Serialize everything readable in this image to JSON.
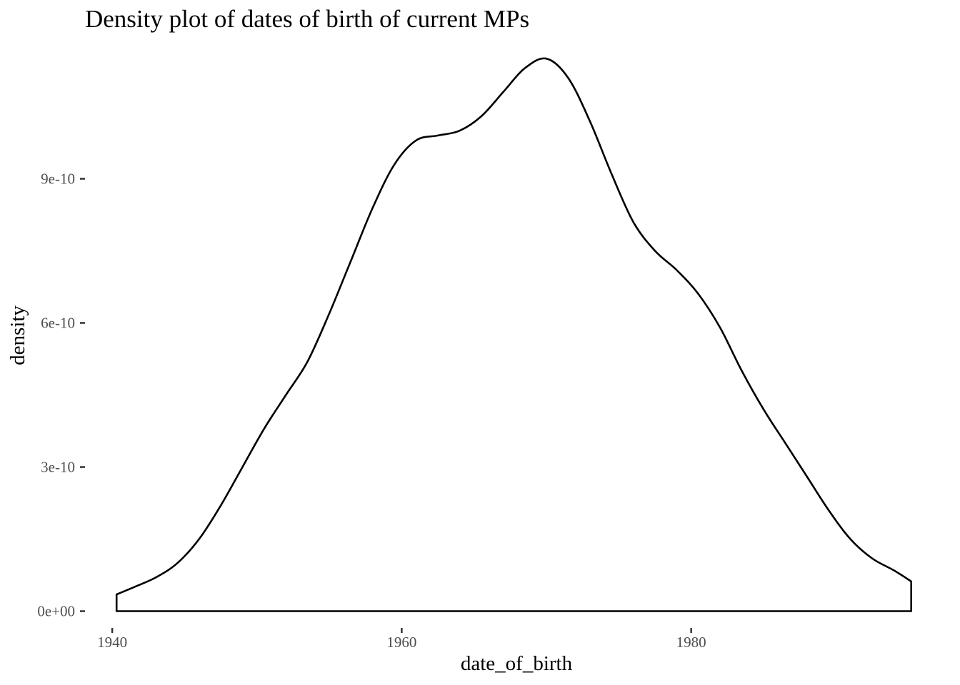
{
  "chart_data": {
    "type": "area",
    "title": "Density plot of dates of birth of current MPs",
    "xlabel": "date_of_birth",
    "ylabel": "density",
    "xlim": [
      1939.5,
      1996.5
    ],
    "ylim": [
      -2e-11,
      1.18e-09
    ],
    "x_ticks": [
      1940,
      1960,
      1980
    ],
    "x_tick_labels": [
      "1940",
      "1960",
      "1980"
    ],
    "y_ticks": [
      0,
      3e-10,
      6e-10,
      9e-10
    ],
    "y_tick_labels": [
      "0e+00",
      "3e-10",
      "6e-10",
      "9e-10"
    ],
    "grid": false,
    "fill": "none",
    "line_color": "#000000",
    "series": [
      {
        "x": [
          1940.3,
          1941.5,
          1943.0,
          1944.5,
          1946.0,
          1947.5,
          1949.0,
          1950.5,
          1952.0,
          1953.5,
          1955.0,
          1956.5,
          1958.0,
          1959.5,
          1961.0,
          1962.5,
          1964.0,
          1965.5,
          1967.0,
          1968.5,
          1970.0,
          1971.5,
          1973.0,
          1974.5,
          1976.0,
          1977.5,
          1979.0,
          1980.5,
          1982.0,
          1983.5,
          1985.0,
          1986.5,
          1988.0,
          1989.5,
          1991.0,
          1992.5,
          1994.0,
          1995.2
        ],
        "y": [
          3.5e-11,
          5e-11,
          7e-11,
          1e-10,
          1.5e-10,
          2.2e-10,
          3e-10,
          3.8e-10,
          4.5e-10,
          5.2e-10,
          6.2e-10,
          7.3e-10,
          8.4e-10,
          9.3e-10,
          9.8e-10,
          9.9e-10,
          1e-09,
          1.03e-09,
          1.08e-09,
          1.13e-09,
          1.15e-09,
          1.11e-09,
          1.02e-09,
          9.1e-10,
          8.1e-10,
          7.5e-10,
          7.1e-10,
          6.6e-10,
          5.9e-10,
          5e-10,
          4.2e-10,
          3.5e-10,
          2.8e-10,
          2.1e-10,
          1.5e-10,
          1.1e-10,
          8.5e-11,
          6.2e-11
        ]
      }
    ]
  }
}
